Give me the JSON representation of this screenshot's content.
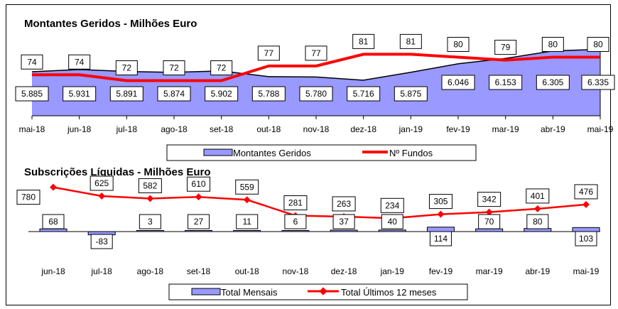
{
  "chart_data": [
    {
      "type": "area",
      "title": "Montantes Geridos - Milhões Euro",
      "categories": [
        "mai-18",
        "jun-18",
        "jul-18",
        "ago-18",
        "set-18",
        "out-18",
        "nov-18",
        "dez-18",
        "jan-19",
        "fev-19",
        "mar-19",
        "abr-19",
        "mai-19"
      ],
      "series": [
        {
          "name": "Montantes Geridos",
          "type": "area",
          "axis": "primary",
          "values": [
            5885,
            5931,
            5891,
            5874,
            5902,
            5788,
            5780,
            5716,
            5875,
            6046,
            6153,
            6305,
            6335
          ],
          "labels": [
            "5.885",
            "5.931",
            "5.891",
            "5.874",
            "5.902",
            "5.788",
            "5.780",
            "5.716",
            "5.875",
            "6.046",
            "6.153",
            "6.305",
            "6.335"
          ],
          "color": "#9999ff"
        },
        {
          "name": "Nº Fundos",
          "type": "line",
          "axis": "secondary",
          "values": [
            74,
            74,
            72,
            72,
            72,
            77,
            77,
            81,
            81,
            80,
            79,
            80,
            80
          ],
          "labels": [
            "74",
            "74",
            "72",
            "72",
            "72",
            "77",
            "77",
            "81",
            "81",
            "80",
            "79",
            "80",
            "80"
          ],
          "color": "#ff0000"
        }
      ],
      "legend": "bottom"
    },
    {
      "type": "bar",
      "title": "Subscrições Líquidas - Milhões Euro",
      "categories": [
        "jun-18",
        "jul-18",
        "ago-18",
        "set-18",
        "out-18",
        "nov-18",
        "dez-18",
        "jan-19",
        "fev-19",
        "mar-19",
        "abr-19",
        "mai-19"
      ],
      "series": [
        {
          "name": "Total Mensais",
          "type": "bar",
          "axis": "primary",
          "values": [
            68,
            -83,
            3,
            27,
            11,
            6,
            37,
            40,
            114,
            70,
            80,
            103
          ],
          "labels": [
            "68",
            "-83",
            "3",
            "27",
            "11",
            "6",
            "37",
            "40",
            "114",
            "70",
            "80",
            "103"
          ],
          "color": "#9999ff"
        },
        {
          "name": "Total Últimos 12 meses",
          "type": "line",
          "axis": "secondary",
          "values": [
            780,
            625,
            582,
            610,
            559,
            281,
            263,
            234,
            305,
            342,
            401,
            476
          ],
          "labels": [
            "780",
            "625",
            "582",
            "610",
            "559",
            "281",
            "263",
            "234",
            "305",
            "342",
            "401",
            "476"
          ],
          "color": "#ff0000"
        }
      ],
      "legend": "bottom"
    }
  ]
}
